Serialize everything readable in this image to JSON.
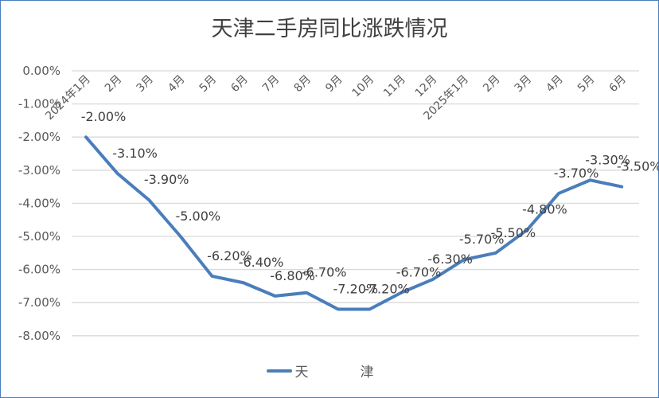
{
  "chart_data": {
    "type": "line",
    "title": "天津二手房同比涨跌情况",
    "xlabel": "",
    "ylabel": "",
    "categories": [
      "2024年1月",
      "2月",
      "3月",
      "4月",
      "5月",
      "6月",
      "7月",
      "8月",
      "9月",
      "10月",
      "11月",
      "12月",
      "2025年1月",
      "2月",
      "3月",
      "4月",
      "5月",
      "6月"
    ],
    "series": [
      {
        "name": "天　津",
        "color": "#4a7ebb",
        "values": [
          -2.0,
          -3.1,
          -3.9,
          -5.0,
          -6.2,
          -6.4,
          -6.8,
          -6.7,
          -7.2,
          -7.2,
          -6.7,
          -6.3,
          -5.7,
          -5.5,
          -4.8,
          -3.7,
          -3.3,
          -3.5
        ]
      }
    ],
    "data_labels": [
      "-2.00%",
      "-3.10%",
      "-3.90%",
      "-5.00%",
      "-6.20%",
      "-6.40%",
      "-6.80%",
      "-6.70%",
      "-7.20%",
      "-7.20%",
      "-6.70%",
      "-6.30%",
      "-5.70%",
      "-5.50%",
      "-4.80%",
      "-3.70%",
      "-3.30%",
      "-3.50%"
    ],
    "ylim": [
      -8,
      0
    ],
    "yticks": [
      "0.00%",
      "-1.00%",
      "-2.00%",
      "-3.00%",
      "-4.00%",
      "-5.00%",
      "-6.00%",
      "-7.00%",
      "-8.00%"
    ],
    "grid": true,
    "legend_position": "bottom"
  },
  "title": "天津二手房同比涨跌情况",
  "legend": {
    "label": "天　津"
  }
}
